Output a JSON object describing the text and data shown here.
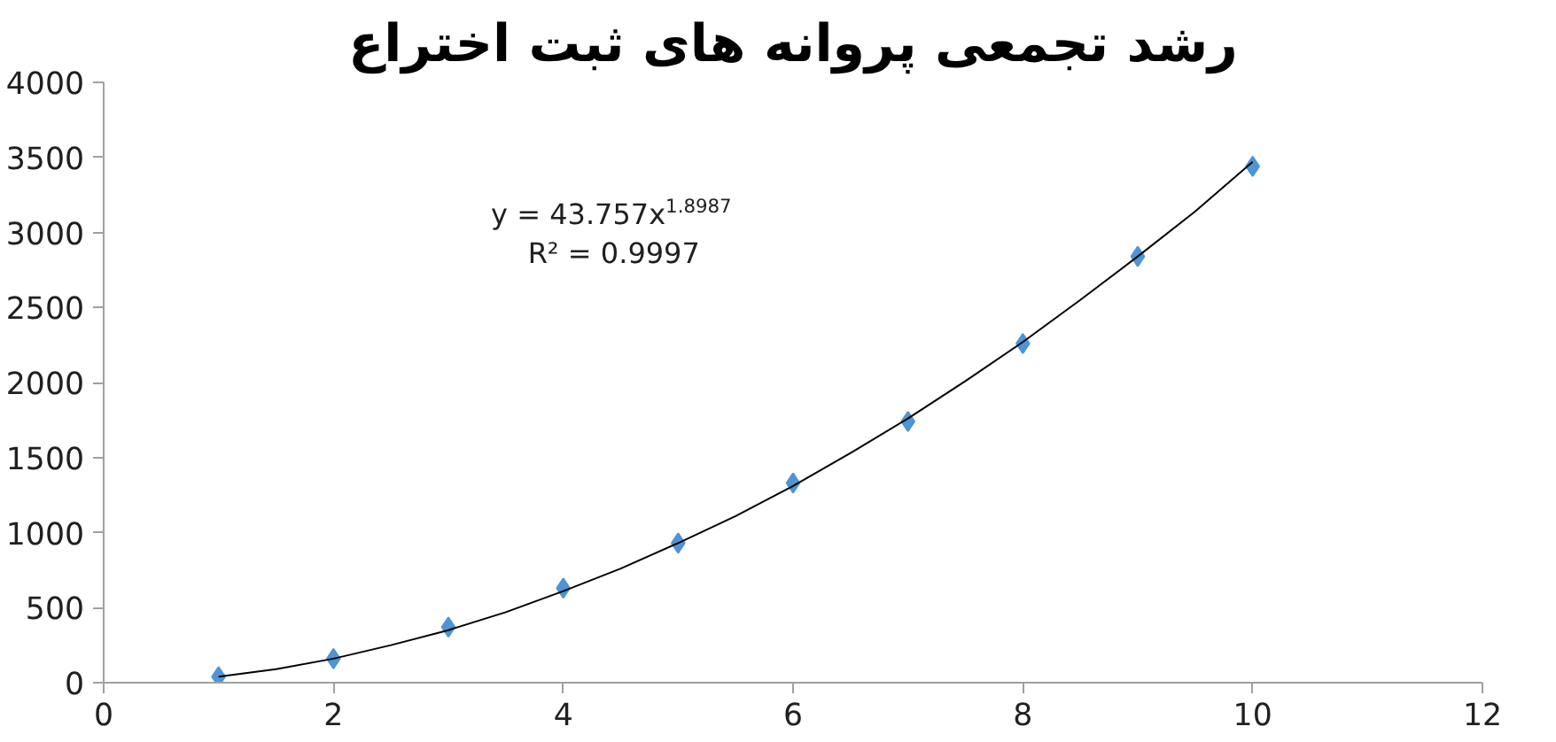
{
  "chart_data": {
    "type": "scatter",
    "title": "رشد تجمعی پروانه های ثبت اختراع",
    "x": [
      1,
      2,
      3,
      4,
      5,
      6,
      7,
      8,
      9,
      10
    ],
    "series": [
      {
        "color": "#4f94d4",
        "marker": "diamond",
        "values": [
          40,
          160,
          370,
          630,
          930,
          1330,
          1740,
          2260,
          2840,
          3440
        ]
      },
      {
        "type": "line",
        "color": "#000000",
        "marker": "none",
        "line_style": "solid",
        "x": [
          1,
          1.5,
          2,
          2.5,
          3,
          3.5,
          4,
          4.5,
          5,
          5.5,
          6,
          6.5,
          7,
          7.5,
          8,
          8.5,
          9,
          9.5,
          10
        ],
        "values": [
          40,
          90,
          160,
          250,
          350,
          470,
          610,
          760,
          930,
          1110,
          1310,
          1530,
          1760,
          2010,
          2270,
          2550,
          2840,
          3140,
          3470
        ]
      }
    ],
    "annotations": [
      "y = 43.757x$^{1.8987}$",
      "R² = 0.9997"
    ],
    "xlim": [
      0,
      12
    ],
    "xticks": [
      0,
      2,
      4,
      6,
      8,
      10,
      12
    ],
    "ylim": [
      0,
      4000
    ],
    "yticks": [
      0,
      500,
      1000,
      1500,
      2000,
      2500,
      3000,
      3500,
      4000
    ],
    "grid": false
  }
}
